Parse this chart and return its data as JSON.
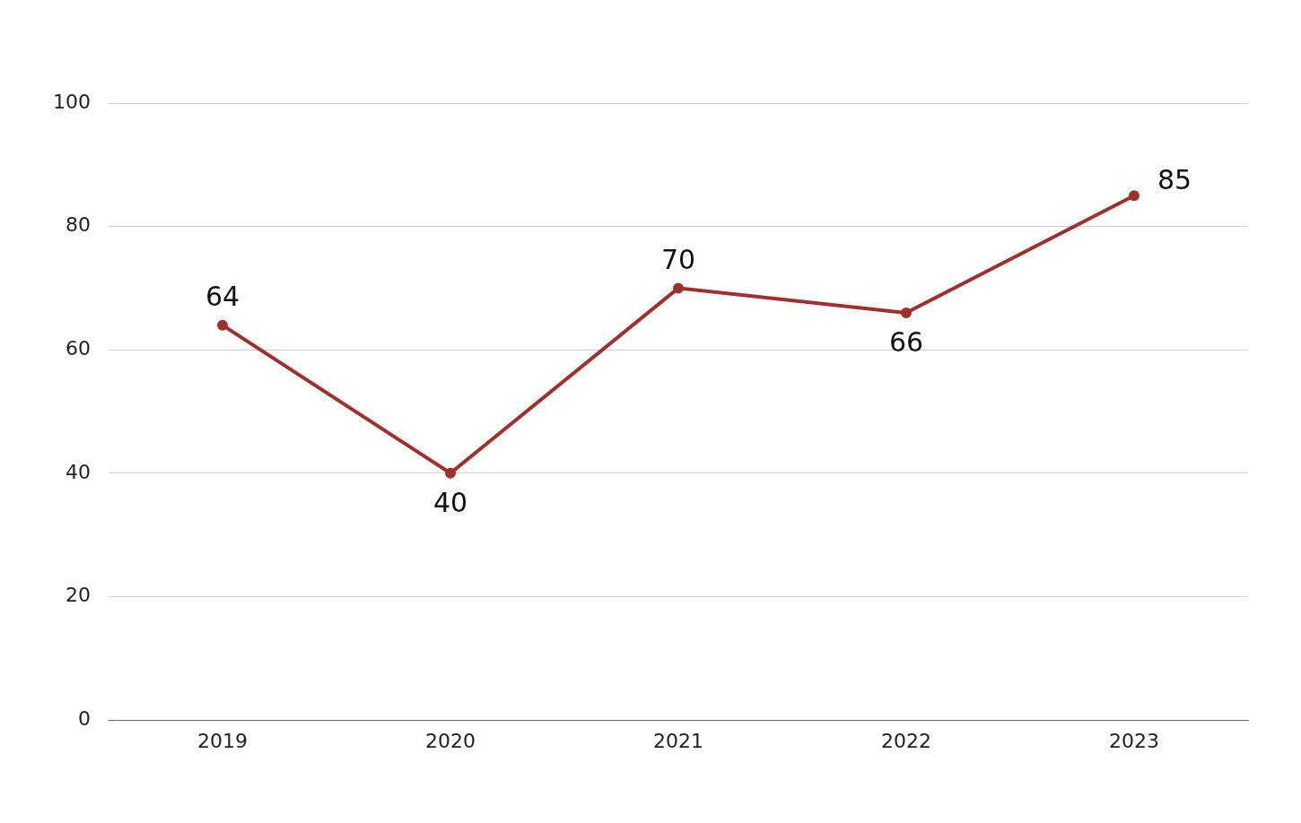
{
  "chart_data": {
    "type": "line",
    "categories": [
      "2019",
      "2020",
      "2021",
      "2022",
      "2023"
    ],
    "series": [
      {
        "color": "#a0302d",
        "values": [
          64,
          40,
          70,
          66,
          85
        ]
      }
    ],
    "ylim": [
      0,
      100
    ],
    "yticks": [
      0,
      20,
      40,
      60,
      80,
      100
    ],
    "grid": "y",
    "legend": false,
    "marker": "circle",
    "line_style": "solid",
    "data_labels": true
  }
}
